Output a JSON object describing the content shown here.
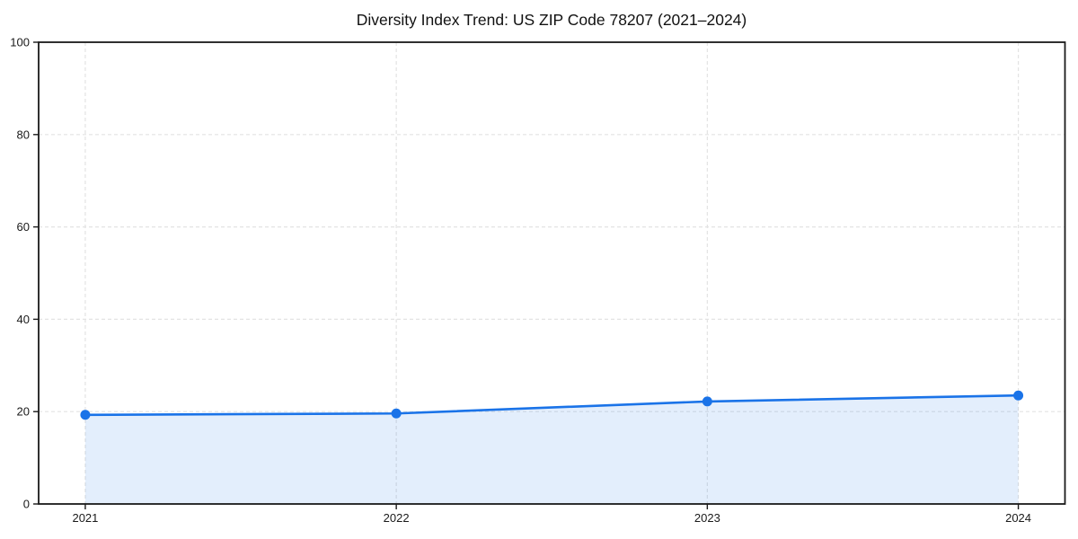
{
  "chart_data": {
    "type": "line",
    "title": "Diversity Index Trend: US ZIP Code 78207 (2021–2024)",
    "x": [
      2021,
      2022,
      2023,
      2024
    ],
    "categories": [
      "2021",
      "2022",
      "2023",
      "2024"
    ],
    "series": [
      {
        "name": "Diversity Index",
        "values": [
          19.3,
          19.6,
          22.2,
          23.5
        ]
      }
    ],
    "xlabel": "",
    "ylabel": "",
    "ylim": [
      0,
      100
    ],
    "yticks": [
      0,
      20,
      40,
      60,
      80,
      100
    ],
    "grid": true,
    "grid_style": "dashed",
    "legend_position": "none",
    "area_fill": true,
    "marker": "circle",
    "colors": {
      "line": "#1a73e8",
      "fill": "rgba(26,115,232,0.12)",
      "grid": "#e3e3e3",
      "spine": "#1a1a1a",
      "text": "#1a1a1a",
      "background": "#ffffff"
    }
  }
}
